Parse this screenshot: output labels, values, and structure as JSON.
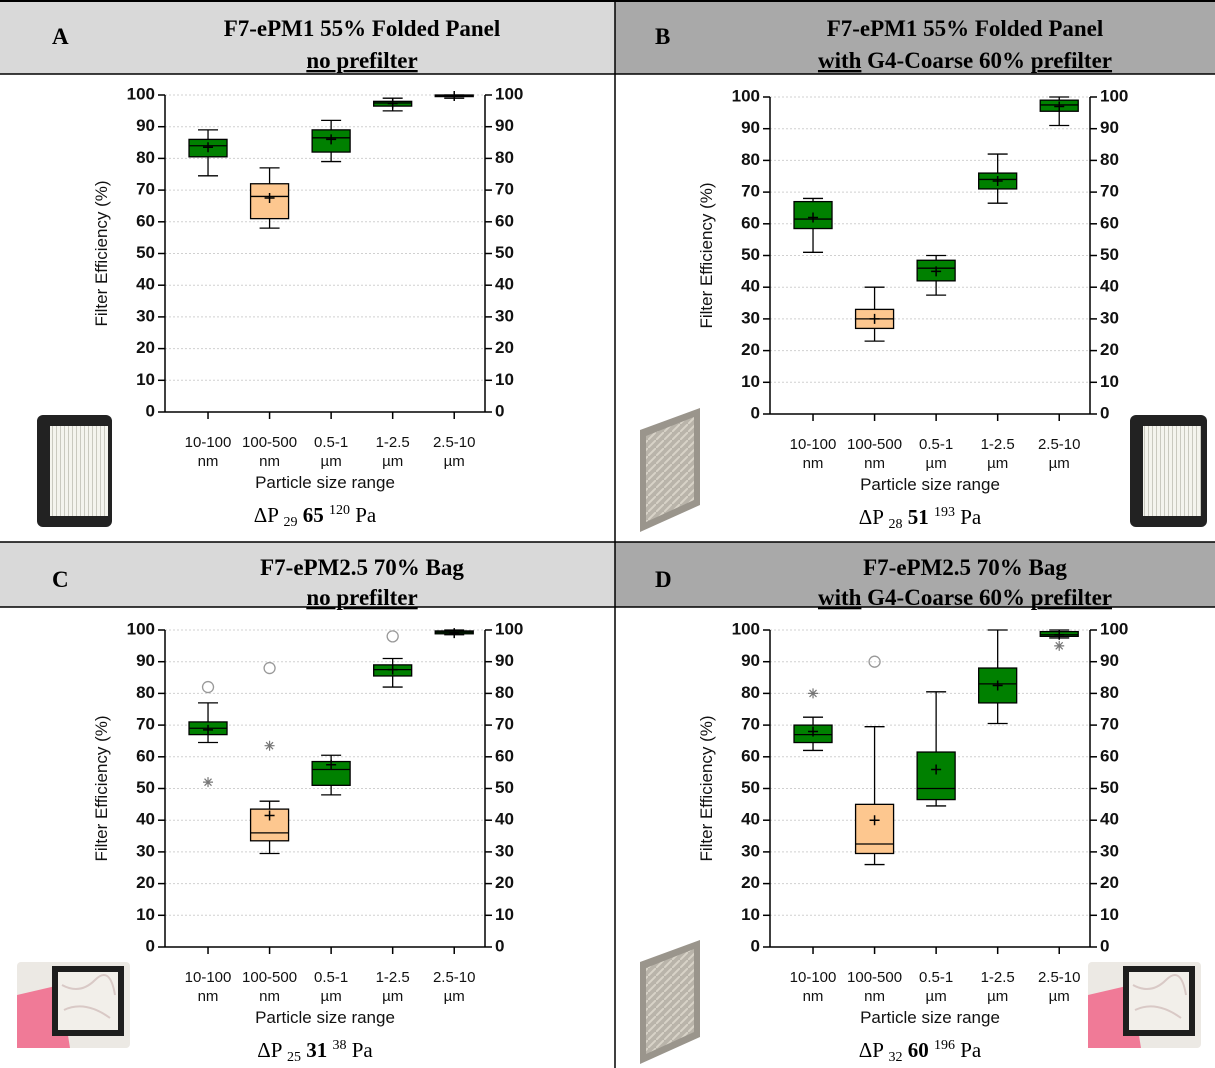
{
  "chart_data": [
    {
      "type": "box",
      "panel": "A",
      "title": "F7-ePM1 55% Folded Panel",
      "subtitle": [
        {
          "text": "no prefilter",
          "underline": true
        }
      ],
      "ylabel": "Filter Efficiency (%)",
      "xlabel": "Particle size range",
      "categories": [
        "10-100 nm",
        "100-500 nm",
        "0.5-1 µm",
        "1-2.5 µm",
        "2.5-10 µm"
      ],
      "colors": [
        "#008000",
        "#fdc78f",
        "#008000",
        "#008000",
        "#008000"
      ],
      "ylim": [
        0,
        100
      ],
      "yticks": [
        0,
        10,
        20,
        30,
        40,
        50,
        60,
        70,
        80,
        90,
        100
      ],
      "y2lim": [
        0,
        100
      ],
      "y2ticks": [
        0,
        10,
        20,
        30,
        40,
        50,
        60,
        70,
        80,
        90,
        100
      ],
      "boxes": [
        {
          "low": 74.5,
          "q1": 80.5,
          "median": 84,
          "q3": 86,
          "high": 89,
          "mean": 83.5,
          "outliers": [],
          "extremes": []
        },
        {
          "low": 58,
          "q1": 61,
          "median": 68,
          "q3": 72,
          "high": 77,
          "mean": 67.5,
          "outliers": [],
          "extremes": []
        },
        {
          "low": 79,
          "q1": 82,
          "median": 86.5,
          "q3": 89,
          "high": 92,
          "mean": 86,
          "outliers": [],
          "extremes": []
        },
        {
          "low": 95,
          "q1": 96.5,
          "median": 97.5,
          "q3": 98,
          "high": 99,
          "mean": 97.3,
          "outliers": [],
          "extremes": []
        },
        {
          "low": 99,
          "q1": 99.5,
          "median": 99.8,
          "q3": 100,
          "high": 100,
          "mean": 99.7,
          "outliers": [],
          "extremes": []
        }
      ],
      "pressure_drop": {
        "label": "ΔP",
        "min": 29,
        "median": 65,
        "max": 120,
        "unit": "Pa"
      }
    },
    {
      "type": "box",
      "panel": "B",
      "title": "F7-ePM1 55% Folded Panel",
      "subtitle": [
        {
          "text": "with",
          "underline": true
        },
        {
          "text": "G4-Coarse 60%",
          "underline": false
        },
        {
          "text": "prefilter",
          "underline": true
        }
      ],
      "ylabel": "Filter Efficiency (%)",
      "xlabel": "Particle size range",
      "categories": [
        "10-100 nm",
        "100-500 nm",
        "0.5-1 µm",
        "1-2.5 µm",
        "2.5-10 µm"
      ],
      "colors": [
        "#008000",
        "#fdc78f",
        "#008000",
        "#008000",
        "#008000"
      ],
      "ylim": [
        0,
        100
      ],
      "yticks": [
        0,
        10,
        20,
        30,
        40,
        50,
        60,
        70,
        80,
        90,
        100
      ],
      "y2lim": [
        0,
        100
      ],
      "y2ticks": [
        0,
        10,
        20,
        30,
        40,
        50,
        60,
        70,
        80,
        90,
        100
      ],
      "boxes": [
        {
          "low": 51,
          "q1": 58.5,
          "median": 61.5,
          "q3": 67,
          "high": 68,
          "mean": 62,
          "outliers": [],
          "extremes": []
        },
        {
          "low": 23,
          "q1": 27,
          "median": 30,
          "q3": 33,
          "high": 40,
          "mean": 30,
          "outliers": [],
          "extremes": []
        },
        {
          "low": 37.5,
          "q1": 42,
          "median": 46,
          "q3": 48.5,
          "high": 50,
          "mean": 45,
          "outliers": [],
          "extremes": []
        },
        {
          "low": 66.5,
          "q1": 71,
          "median": 74,
          "q3": 76,
          "high": 82,
          "mean": 73.5,
          "outliers": [],
          "extremes": []
        },
        {
          "low": 91,
          "q1": 95.5,
          "median": 97.5,
          "q3": 99,
          "high": 100,
          "mean": 97,
          "outliers": [],
          "extremes": []
        }
      ],
      "pressure_drop": {
        "label": "ΔP",
        "min": 28,
        "median": 51,
        "max": 193,
        "unit": "Pa"
      }
    },
    {
      "type": "box",
      "panel": "C",
      "title": "F7-ePM2.5 70% Bag",
      "subtitle": [
        {
          "text": "no prefilter",
          "underline": true
        }
      ],
      "ylabel": "Filter Efficiency (%)",
      "xlabel": "Particle size range",
      "categories": [
        "10-100 nm",
        "100-500 nm",
        "0.5-1 µm",
        "1-2.5 µm",
        "2.5-10 µm"
      ],
      "colors": [
        "#008000",
        "#fdc78f",
        "#008000",
        "#008000",
        "#008000"
      ],
      "ylim": [
        0,
        100
      ],
      "yticks": [
        0,
        10,
        20,
        30,
        40,
        50,
        60,
        70,
        80,
        90,
        100
      ],
      "y2lim": [
        0,
        100
      ],
      "y2ticks": [
        0,
        10,
        20,
        30,
        40,
        50,
        60,
        70,
        80,
        90,
        100
      ],
      "boxes": [
        {
          "low": 64.5,
          "q1": 67,
          "median": 69,
          "q3": 71,
          "high": 77,
          "mean": 68.5,
          "outliers": [
            82
          ],
          "extremes": [
            52
          ]
        },
        {
          "low": 29.5,
          "q1": 33.5,
          "median": 36,
          "q3": 43.5,
          "high": 46,
          "mean": 41.5,
          "outliers": [
            88
          ],
          "extremes": [
            63.5
          ]
        },
        {
          "low": 48,
          "q1": 51,
          "median": 56,
          "q3": 58.5,
          "high": 60.5,
          "mean": 57.5,
          "outliers": [],
          "extremes": []
        },
        {
          "low": 82,
          "q1": 85.5,
          "median": 87.5,
          "q3": 89,
          "high": 91,
          "mean": 87.5,
          "outliers": [
            98
          ],
          "extremes": []
        },
        {
          "low": 98.5,
          "q1": 98.8,
          "median": 99.3,
          "q3": 99.7,
          "high": 100,
          "mean": 99,
          "outliers": [],
          "extremes": []
        }
      ],
      "pressure_drop": {
        "label": "ΔP",
        "min": 25,
        "median": 31,
        "max": 38,
        "unit": "Pa"
      }
    },
    {
      "type": "box",
      "panel": "D",
      "title": "F7-ePM2.5 70% Bag",
      "subtitle": [
        {
          "text": "with",
          "underline": true
        },
        {
          "text": "G4-Coarse 60%",
          "underline": false
        },
        {
          "text": "prefilter",
          "underline": true
        }
      ],
      "ylabel": "Filter Efficiency (%)",
      "xlabel": "Particle size range",
      "categories": [
        "10-100 nm",
        "100-500 nm",
        "0.5-1 µm",
        "1-2.5 µm",
        "2.5-10 µm"
      ],
      "colors": [
        "#008000",
        "#fdc78f",
        "#008000",
        "#008000",
        "#008000"
      ],
      "ylim": [
        0,
        100
      ],
      "yticks": [
        0,
        10,
        20,
        30,
        40,
        50,
        60,
        70,
        80,
        90,
        100
      ],
      "y2lim": [
        0,
        100
      ],
      "y2ticks": [
        0,
        10,
        20,
        30,
        40,
        50,
        60,
        70,
        80,
        90,
        100
      ],
      "boxes": [
        {
          "low": 62,
          "q1": 64.5,
          "median": 67,
          "q3": 70,
          "high": 72.5,
          "mean": 68,
          "outliers": [],
          "extremes": [
            80
          ]
        },
        {
          "low": 26,
          "q1": 29.5,
          "median": 32.5,
          "q3": 45,
          "high": 69.5,
          "mean": 40,
          "outliers": [
            90
          ],
          "extremes": []
        },
        {
          "low": 44.5,
          "q1": 46.5,
          "median": 50,
          "q3": 61.5,
          "high": 80.5,
          "mean": 56,
          "outliers": [],
          "extremes": []
        },
        {
          "low": 70.5,
          "q1": 77,
          "median": 83,
          "q3": 88,
          "high": 100,
          "mean": 82.5,
          "outliers": [],
          "extremes": []
        },
        {
          "low": 97.5,
          "q1": 98,
          "median": 98.5,
          "q3": 99.5,
          "high": 100,
          "mean": 98.5,
          "outliers": [],
          "extremes": [
            95
          ]
        }
      ],
      "pressure_drop": {
        "label": "ΔP",
        "min": 32,
        "median": 60,
        "max": 196,
        "unit": "Pa"
      }
    }
  ]
}
